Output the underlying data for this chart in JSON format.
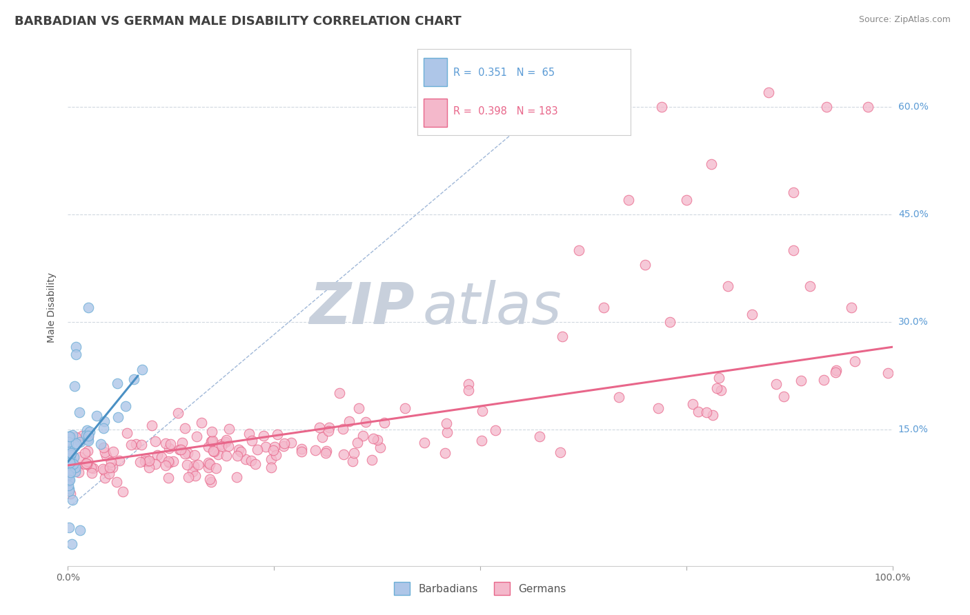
{
  "title": "BARBADIAN VS GERMAN MALE DISABILITY CORRELATION CHART",
  "source": "Source: ZipAtlas.com",
  "ylabel": "Male Disability",
  "xlim": [
    0.0,
    1.0
  ],
  "ylim": [
    -0.04,
    0.68
  ],
  "y_ticks": [
    0.15,
    0.3,
    0.45,
    0.6
  ],
  "y_tick_labels": [
    "15.0%",
    "30.0%",
    "45.0%",
    "60.0%"
  ],
  "barbadian_color": "#6baed6",
  "german_color": "#e8668a",
  "barbadian_color_fill": "#aec6e8",
  "german_color_fill": "#f4b8cb",
  "watermark_zip_color": "#c8d0dc",
  "watermark_atlas_color": "#c8d0dc",
  "grid_color": "#d0d8e0",
  "background_color": "#ffffff",
  "title_fontsize": 13,
  "axis_label_fontsize": 10,
  "tick_fontsize": 10,
  "ref_line_color": "#a0b8d8",
  "barb_trend_color": "#4a90c4",
  "germ_trend_color": "#e8668a"
}
